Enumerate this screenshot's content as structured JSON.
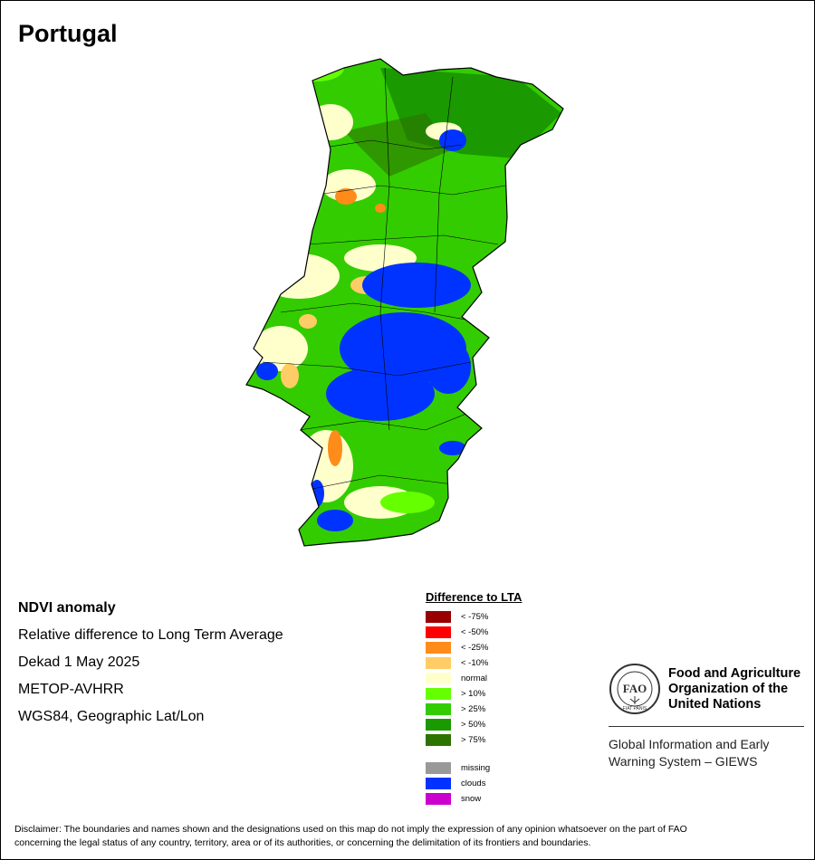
{
  "header": {
    "title": "Portugal"
  },
  "info": {
    "lines": [
      "NDVI anomaly",
      "Relative difference to Long Term Average",
      "Dekad 1 May 2025",
      "METOP-AVHRR",
      "WGS84, Geographic Lat/Lon"
    ]
  },
  "legend": {
    "title": "Difference to LTA",
    "classes": [
      {
        "label": "< -75%",
        "color": "#990000"
      },
      {
        "label": "< -50%",
        "color": "#ff0000"
      },
      {
        "label": "< -25%",
        "color": "#ff8c1a"
      },
      {
        "label": "< -10%",
        "color": "#ffcc66"
      },
      {
        "label": "normal",
        "color": "#ffffcc"
      },
      {
        "label": "> 10%",
        "color": "#66ff00"
      },
      {
        "label": "> 25%",
        "color": "#33cc00"
      },
      {
        "label": "> 50%",
        "color": "#1a9900"
      },
      {
        "label": "> 75%",
        "color": "#2d7300"
      }
    ],
    "extra": [
      {
        "label": "missing",
        "color": "#999999"
      },
      {
        "label": "clouds",
        "color": "#0033ff"
      },
      {
        "label": "snow",
        "color": "#cc00cc"
      }
    ]
  },
  "org": {
    "name_line1": "Food and Agriculture",
    "name_line2": "Organization of the",
    "name_line3": "United Nations",
    "logo_text": "FAO",
    "logo_motto": "FIAT PANIS",
    "system_line1": "Global Information and Early",
    "system_line2": "Warning System – GIEWS"
  },
  "disclaimer": {
    "line1": "Disclaimer: The boundaries and names shown and the designations used on this map do not imply the expression of any opinion whatsoever on the part of FAO",
    "line2": "concerning the legal status of any country, territory, area or of its authorities, or concerning the delimitation of its frontiers and boundaries."
  }
}
